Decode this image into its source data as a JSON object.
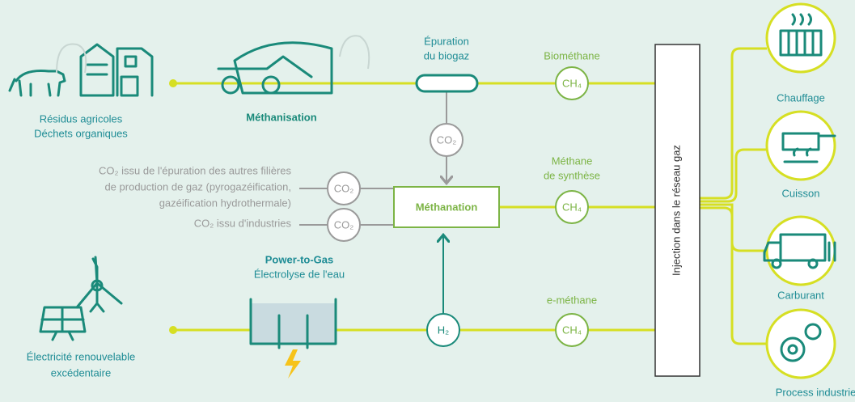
{
  "sources": {
    "agricole": [
      "Résidus agricoles",
      "Déchets organiques"
    ],
    "electricite": [
      "Électricité renouvelable",
      "excédentaire"
    ]
  },
  "methanisation": "Méthanisation",
  "epuration": [
    "Épuration",
    "du biogaz"
  ],
  "co2_epuration": "CO₂",
  "co2_autres": {
    "label": [
      "CO₂ issu de l'épuration des autres filières",
      "de production de gaz (pyrogazéification,",
      "gazéification hydrothermale)"
    ],
    "node": "CO₂"
  },
  "co2_industries": {
    "label": "CO₂ issu d'industries",
    "node": "CO₂"
  },
  "methanation": "Méthanation",
  "power_to_gas": {
    "title": "Power-to-Gas",
    "subtitle": "Électrolyse de l'eau"
  },
  "h2": "H₂",
  "products": {
    "biomethane": {
      "label": "Biométhane",
      "node": "CH₄"
    },
    "methane_synthese": {
      "label": [
        "Méthane",
        "de synthèse"
      ],
      "node": "CH₄"
    },
    "e_methane": {
      "label": "e-méthane",
      "node": "CH₄"
    }
  },
  "injection": "Injection dans le réseau gaz",
  "usages": [
    "Chauffage",
    "Cuisson",
    "Carburant",
    "Process industriel"
  ]
}
